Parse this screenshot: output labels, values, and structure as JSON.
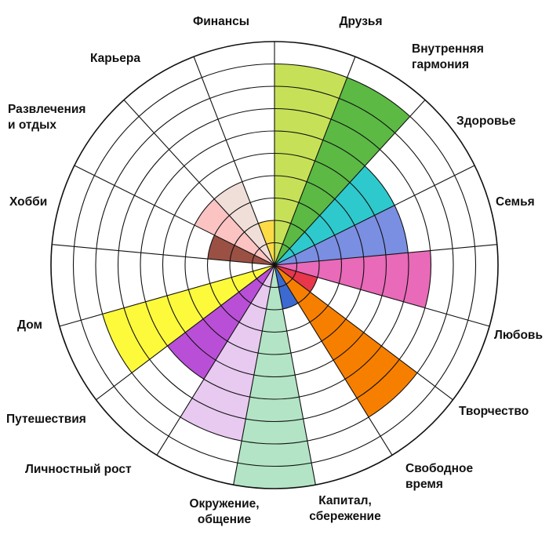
{
  "chart_data": {
    "type": "polar_area",
    "rings": 10,
    "max_value": 10,
    "grid": true,
    "start": "top",
    "direction": "clockwise",
    "sectors": [
      {
        "label": "Друзья",
        "lines": [
          "Друзья"
        ],
        "value": 9,
        "color": "#c6e157"
      },
      {
        "label": "Внутренняя гармония",
        "lines": [
          "Внутренняя",
          "гармония"
        ],
        "value": 9,
        "color": "#5bb944"
      },
      {
        "label": "Здоровье",
        "lines": [
          "Здоровье"
        ],
        "value": 6,
        "color": "#2ec9cc"
      },
      {
        "label": "Семья",
        "lines": [
          "Семья"
        ],
        "value": 6,
        "color": "#7a8ee2"
      },
      {
        "label": "Любовь",
        "lines": [
          "Любовь"
        ],
        "value": 7,
        "color": "#e86ab8"
      },
      {
        "label": "Творчество",
        "lines": [
          "Творчество"
        ],
        "value": 2,
        "color": "#e8364a"
      },
      {
        "label": "Свободное время",
        "lines": [
          "Свободное",
          "время"
        ],
        "value": 8,
        "color": "#f77f00"
      },
      {
        "label": "Капитал, сбережение",
        "lines": [
          "Капитал,",
          "сбережение"
        ],
        "value": 2,
        "color": "#3c6ad0"
      },
      {
        "label": "Окружение, общение",
        "lines": [
          "Окружение,",
          "общение"
        ],
        "value": 10,
        "color": "#b3e4c6"
      },
      {
        "label": "Личностный рост",
        "lines": [
          "Личностный рост"
        ],
        "value": 8,
        "color": "#e8c9f0"
      },
      {
        "label": "Путешествия",
        "lines": [
          "Путешествия"
        ],
        "value": 6,
        "color": "#b94fd6"
      },
      {
        "label": "Дом",
        "lines": [
          "Дом"
        ],
        "value": 8,
        "color": "#fdfa3c"
      },
      {
        "label": "Хобби",
        "lines": [
          "Хобби"
        ],
        "value": 1,
        "color": "#ffffff"
      },
      {
        "label": "Развлечения и отдых",
        "lines": [
          "Развлечения",
          "и отдых"
        ],
        "value": 3,
        "color": "#9b5044"
      },
      {
        "label": "Карьера",
        "lines": [
          "Карьера"
        ],
        "value": 4,
        "color": "#fcc3c3"
      },
      {
        "label": "Финансы",
        "lines": [
          "Финансы"
        ],
        "value": 4,
        "color": "#f0dfd8"
      },
      {
        "label": "",
        "lines": [],
        "value": 2,
        "color": "#fddb46"
      }
    ]
  }
}
